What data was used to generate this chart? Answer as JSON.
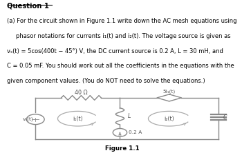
{
  "title": "Question 1",
  "figure_label": "Figure 1.1",
  "bg_color": "#ffffff",
  "text_color": "#000000",
  "circuit_color": "#888888",
  "R_label": "40 Ω",
  "L_label": "L",
  "C_label": "C",
  "i1_label": "i₁(t)",
  "i2_label": "i₂(t)",
  "vs_label": "vₛ(t)",
  "is_label": "0.2 A",
  "dependent_label": "5i₁(t)",
  "line1": "(a) For the circuit shown in Figure 1.1 write down the AC mesh equations using",
  "line2": "phasor notations for currents i₁(t) and i₂(t). The voltage source is given as",
  "line3": "vₛ(t) = 5cos(400t − 45°) V, the DC current source is 0.2 A, L = 30 mH, and",
  "line4": "C = 0.05 mF. You should work out all the coefficients in the equations with the",
  "line5": "given component values. (You do NOT need to solve the equations.)"
}
